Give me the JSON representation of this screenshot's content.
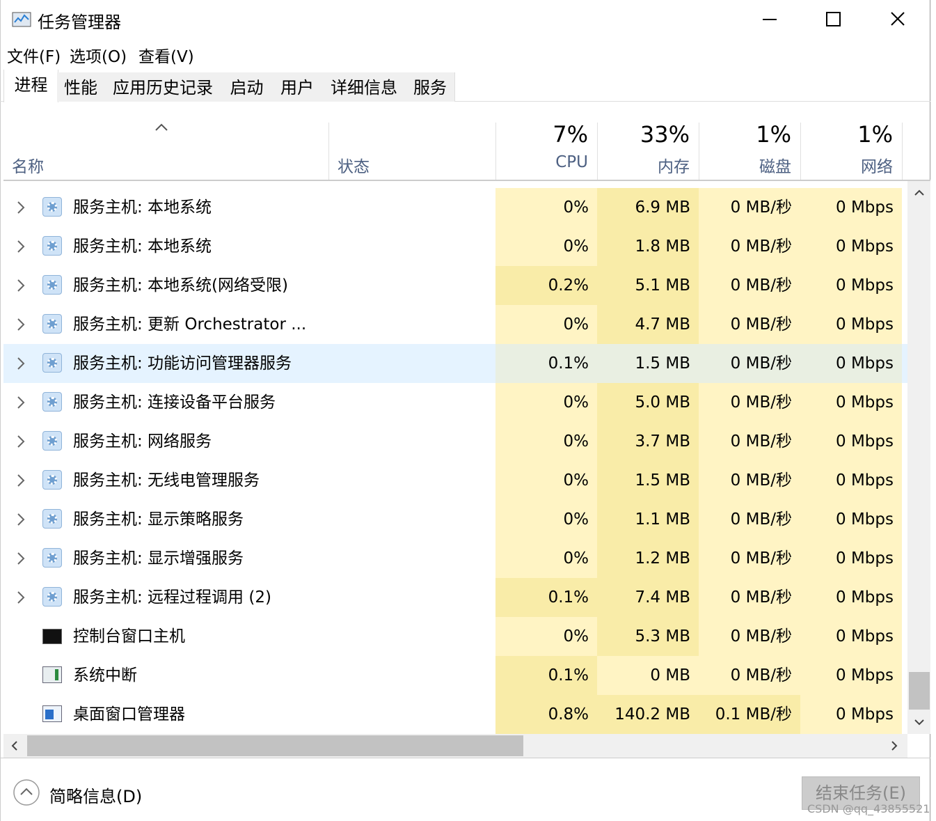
{
  "window": {
    "title": "任务管理器"
  },
  "menu": [
    "文件(F)",
    "选项(O)",
    "查看(V)"
  ],
  "tabs": [
    "进程",
    "性能",
    "应用历史记录",
    "启动",
    "用户",
    "详细信息",
    "服务"
  ],
  "columns": [
    {
      "name": "名称"
    },
    {
      "name": "状态"
    },
    {
      "percent": "7%",
      "name": "CPU"
    },
    {
      "percent": "33%",
      "name": "内存"
    },
    {
      "percent": "1%",
      "name": "磁盘"
    },
    {
      "percent": "1%",
      "name": "网络"
    }
  ],
  "colors": {
    "light": "#fff4c4",
    "dark": "#f9eca8",
    "hover": "#e5f3ff",
    "hover_cell": "#e9efe2"
  },
  "rows": [
    {
      "name": "服务主机: 本地系统",
      "icon": "service",
      "expandable": true,
      "cells": [
        "0%",
        "6.9 MB",
        "0 MB/秒",
        "0 Mbps"
      ],
      "shade": [
        "light",
        "dark",
        "light",
        "light"
      ]
    },
    {
      "name": "服务主机: 本地系统",
      "icon": "service",
      "expandable": true,
      "cells": [
        "0%",
        "1.8 MB",
        "0 MB/秒",
        "0 Mbps"
      ],
      "shade": [
        "light",
        "dark",
        "light",
        "light"
      ]
    },
    {
      "name": "服务主机: 本地系统(网络受限)",
      "icon": "service",
      "expandable": true,
      "cells": [
        "0.2%",
        "5.1 MB",
        "0 MB/秒",
        "0 Mbps"
      ],
      "shade": [
        "dark",
        "dark",
        "light",
        "light"
      ]
    },
    {
      "name": "服务主机: 更新 Orchestrator ...",
      "icon": "service",
      "expandable": true,
      "cells": [
        "0%",
        "4.7 MB",
        "0 MB/秒",
        "0 Mbps"
      ],
      "shade": [
        "light",
        "dark",
        "light",
        "light"
      ]
    },
    {
      "name": "服务主机: 功能访问管理器服务",
      "icon": "service",
      "expandable": true,
      "hover": true,
      "cells": [
        "0.1%",
        "1.5 MB",
        "0 MB/秒",
        "0 Mbps"
      ],
      "shade": [
        "hover_cell",
        "hover_cell",
        "hover_cell",
        "hover_cell"
      ]
    },
    {
      "name": "服务主机: 连接设备平台服务",
      "icon": "service",
      "expandable": true,
      "cells": [
        "0%",
        "5.0 MB",
        "0 MB/秒",
        "0 Mbps"
      ],
      "shade": [
        "light",
        "dark",
        "light",
        "light"
      ]
    },
    {
      "name": "服务主机: 网络服务",
      "icon": "service",
      "expandable": true,
      "cells": [
        "0%",
        "3.7 MB",
        "0 MB/秒",
        "0 Mbps"
      ],
      "shade": [
        "light",
        "dark",
        "light",
        "light"
      ]
    },
    {
      "name": "服务主机: 无线电管理服务",
      "icon": "service",
      "expandable": true,
      "cells": [
        "0%",
        "1.5 MB",
        "0 MB/秒",
        "0 Mbps"
      ],
      "shade": [
        "light",
        "dark",
        "light",
        "light"
      ]
    },
    {
      "name": "服务主机: 显示策略服务",
      "icon": "service",
      "expandable": true,
      "cells": [
        "0%",
        "1.1 MB",
        "0 MB/秒",
        "0 Mbps"
      ],
      "shade": [
        "light",
        "dark",
        "light",
        "light"
      ]
    },
    {
      "name": "服务主机: 显示增强服务",
      "icon": "service",
      "expandable": true,
      "cells": [
        "0%",
        "1.2 MB",
        "0 MB/秒",
        "0 Mbps"
      ],
      "shade": [
        "light",
        "dark",
        "light",
        "light"
      ]
    },
    {
      "name": "服务主机: 远程过程调用 (2)",
      "icon": "service",
      "expandable": true,
      "cells": [
        "0.1%",
        "7.4 MB",
        "0 MB/秒",
        "0 Mbps"
      ],
      "shade": [
        "dark",
        "dark",
        "light",
        "light"
      ]
    },
    {
      "name": "控制台窗口主机",
      "icon": "console",
      "expandable": false,
      "cells": [
        "0%",
        "5.3 MB",
        "0 MB/秒",
        "0 Mbps"
      ],
      "shade": [
        "light",
        "dark",
        "light",
        "light"
      ]
    },
    {
      "name": "系统中断",
      "icon": "system",
      "expandable": false,
      "cells": [
        "0.1%",
        "0 MB",
        "0 MB/秒",
        "0 Mbps"
      ],
      "shade": [
        "dark",
        "light",
        "light",
        "light"
      ]
    },
    {
      "name": "桌面窗口管理器",
      "icon": "window",
      "expandable": false,
      "cells": [
        "0.8%",
        "140.2 MB",
        "0.1 MB/秒",
        "0 Mbps"
      ],
      "shade": [
        "dark",
        "dark",
        "dark",
        "light"
      ]
    }
  ],
  "footer": {
    "details": "简略信息(D)",
    "end_task": "结束任务(E)"
  },
  "watermark": "CSDN @qq_43855521"
}
